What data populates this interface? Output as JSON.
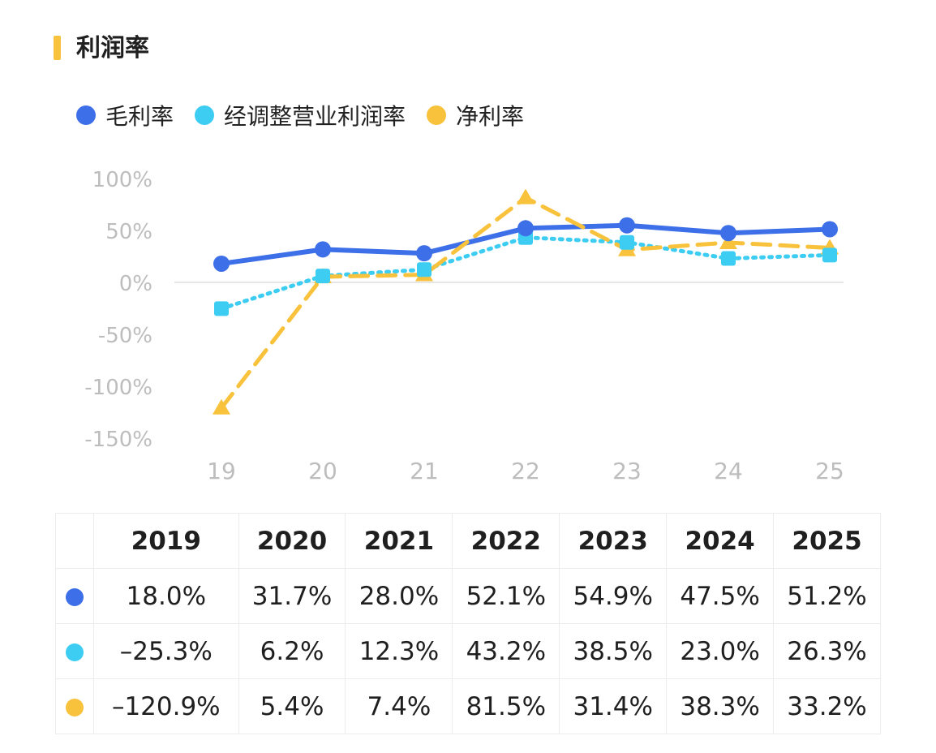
{
  "title": "利润率",
  "colors": {
    "accent": "#F9C23C",
    "gross": "#3D6FE8",
    "adjusted": "#3ECDF2",
    "net": "#F9C23C",
    "axis_text": "#BDBDBD"
  },
  "chart_data": {
    "type": "line",
    "categories": [
      "19",
      "20",
      "21",
      "22",
      "23",
      "24",
      "25"
    ],
    "yticks": [
      "100%",
      "50%",
      "0%",
      "-50%",
      "-100%",
      "-150%"
    ],
    "ylim": [
      -150,
      100
    ],
    "legend_position": "top-left",
    "grid": false,
    "series": [
      {
        "name": "毛利率",
        "values": [
          18.0,
          31.7,
          28.0,
          52.1,
          54.9,
          47.5,
          51.2
        ],
        "marker": "circle",
        "line": "solid"
      },
      {
        "name": "经调整营业利润率",
        "values": [
          -25.3,
          6.2,
          12.3,
          43.2,
          38.5,
          23.0,
          26.3
        ],
        "marker": "square",
        "line": "dotted"
      },
      {
        "name": "净利率",
        "values": [
          -120.9,
          5.4,
          7.4,
          81.5,
          31.4,
          38.3,
          33.2
        ],
        "marker": "triangle",
        "line": "dashed"
      }
    ]
  },
  "table": {
    "headers": [
      "2019",
      "2020",
      "2021",
      "2022",
      "2023",
      "2024",
      "2025"
    ],
    "rows": [
      {
        "cells": [
          "18.0%",
          "31.7%",
          "28.0%",
          "52.1%",
          "54.9%",
          "47.5%",
          "51.2%"
        ]
      },
      {
        "cells": [
          "–25.3%",
          "6.2%",
          "12.3%",
          "43.2%",
          "38.5%",
          "23.0%",
          "26.3%"
        ]
      },
      {
        "cells": [
          "–120.9%",
          "5.4%",
          "7.4%",
          "81.5%",
          "31.4%",
          "38.3%",
          "33.2%"
        ]
      }
    ]
  }
}
